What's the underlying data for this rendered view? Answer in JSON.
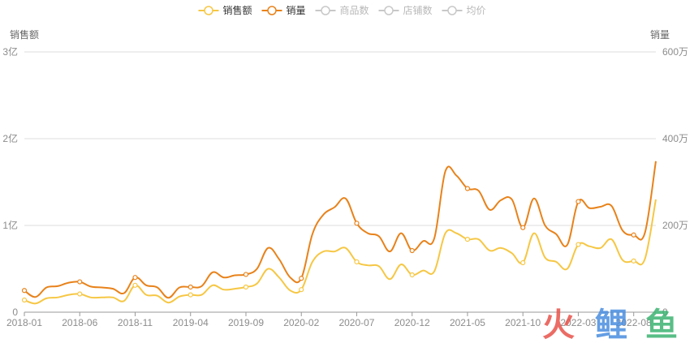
{
  "chart_data": {
    "type": "line",
    "legend": {
      "placement": "top-center",
      "items": [
        {
          "label": "销售额",
          "color": "#f6c744",
          "active": true
        },
        {
          "label": "销量",
          "color": "#e8821a",
          "active": true
        },
        {
          "label": "商品数",
          "color": "#c8c8c8",
          "active": false
        },
        {
          "label": "店铺数",
          "color": "#c8c8c8",
          "active": false
        },
        {
          "label": "均价",
          "color": "#c8c8c8",
          "active": false
        }
      ]
    },
    "y_left": {
      "name": "销售额",
      "min": 0,
      "max": 3,
      "ticks": [
        0,
        1,
        2,
        3
      ],
      "tick_labels": [
        "0",
        "1亿",
        "2亿",
        "3亿"
      ],
      "unit": "亿"
    },
    "y_right": {
      "name": "销量",
      "min": 0,
      "max": 600,
      "ticks": [
        0,
        200,
        400,
        600
      ],
      "tick_labels": [
        "0",
        "200万",
        "400万",
        "600万"
      ],
      "unit": "万"
    },
    "x_tick_labels": [
      "2018-01",
      "2018-06",
      "2018-11",
      "2019-04",
      "2019-09",
      "2020-02",
      "2020-07",
      "2020-12",
      "2021-05",
      "2021-10",
      "2022-03",
      "2022-08"
    ],
    "x_tick_step": 5,
    "grid": true,
    "series": [
      {
        "name": "销售额",
        "axis": "left",
        "color": "#f6c744",
        "values": [
          0.14,
          0.1,
          0.16,
          0.17,
          0.2,
          0.21,
          0.17,
          0.17,
          0.17,
          0.13,
          0.31,
          0.2,
          0.19,
          0.11,
          0.18,
          0.2,
          0.2,
          0.31,
          0.26,
          0.27,
          0.29,
          0.33,
          0.5,
          0.4,
          0.25,
          0.26,
          0.58,
          0.7,
          0.7,
          0.74,
          0.58,
          0.54,
          0.53,
          0.38,
          0.55,
          0.43,
          0.48,
          0.47,
          0.91,
          0.91,
          0.84,
          0.84,
          0.71,
          0.74,
          0.68,
          0.57,
          0.91,
          0.63,
          0.58,
          0.5,
          0.78,
          0.76,
          0.74,
          0.84,
          0.6,
          0.59,
          0.61,
          1.3
        ],
        "markers": [
          0,
          5,
          10,
          15,
          20,
          25,
          30,
          35,
          40,
          45,
          50,
          55
        ]
      },
      {
        "name": "销量",
        "axis": "right",
        "color": "#e8821a",
        "values": [
          50,
          35,
          57,
          60,
          68,
          70,
          59,
          57,
          54,
          44,
          80,
          62,
          57,
          33,
          57,
          58,
          60,
          92,
          80,
          85,
          87,
          100,
          148,
          122,
          80,
          78,
          180,
          225,
          242,
          262,
          205,
          182,
          175,
          140,
          182,
          142,
          164,
          170,
          325,
          315,
          285,
          280,
          236,
          258,
          260,
          195,
          262,
          200,
          180,
          155,
          255,
          240,
          243,
          245,
          188,
          178,
          182,
          348
        ],
        "markers": [
          0,
          5,
          10,
          15,
          20,
          25,
          30,
          35,
          40,
          45,
          50,
          55
        ]
      }
    ],
    "watermark": {
      "chars": [
        "火",
        "鲤",
        "鱼"
      ],
      "colors": [
        "#e8534b",
        "#4a8ee0",
        "#3cb371"
      ]
    }
  }
}
